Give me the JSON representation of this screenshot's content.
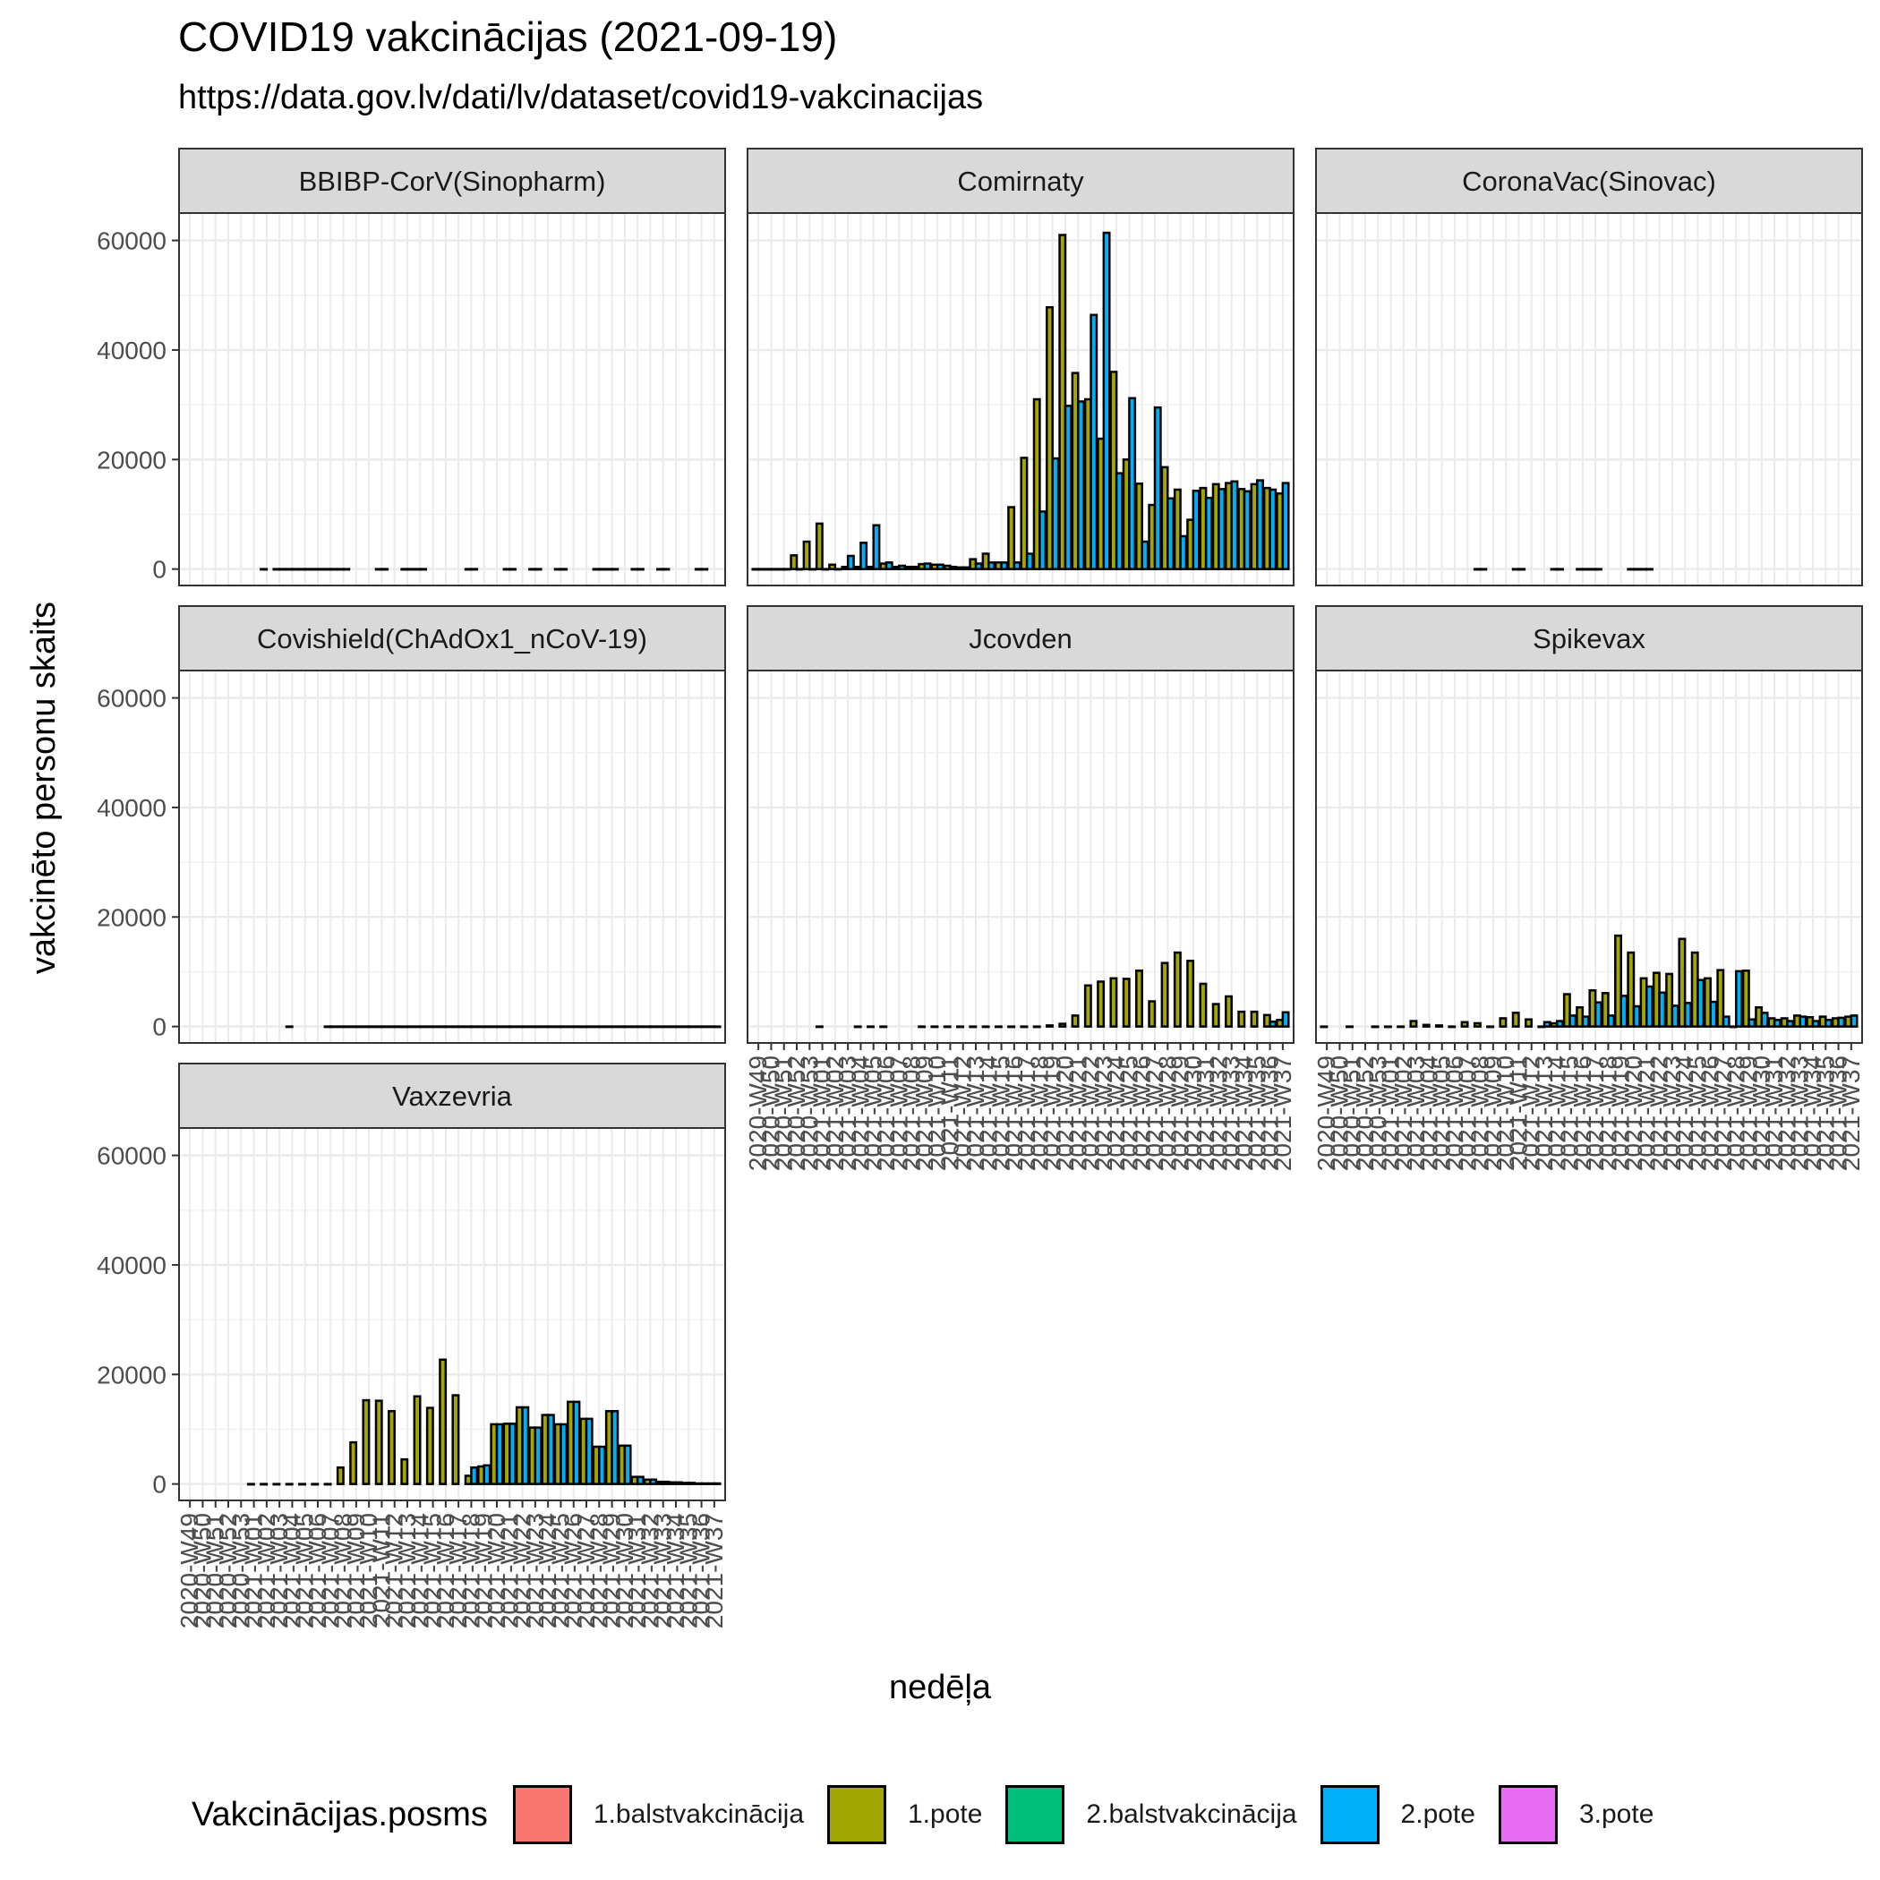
{
  "chart_data": {
    "type": "bar",
    "title": "COVID19 vakcinācijas (2021-09-19)",
    "subtitle": "https://data.gov.lv/dati/lv/dataset/covid19-vakcinacijas",
    "xlabel": "nedēļa",
    "ylabel": "vakcinēto personu skaits",
    "ylim": [
      -3000,
      65000
    ],
    "yticks": [
      0,
      20000,
      40000,
      60000
    ],
    "grid": true,
    "legend": {
      "title": "Vakcinācijas.posms",
      "position": "bottom",
      "entries": [
        {
          "name": "1.balstvakcinācija",
          "color": "#F8766D"
        },
        {
          "name": "1.pote",
          "color": "#A3A500"
        },
        {
          "name": "2.balstvakcinācija",
          "color": "#00BF7D"
        },
        {
          "name": "2.pote",
          "color": "#00B0F6"
        },
        {
          "name": "3.pote",
          "color": "#E76BF3"
        }
      ]
    },
    "weeks": [
      "2020-W49",
      "2020-W50",
      "2020-W51",
      "2020-W52",
      "2020-W53",
      "2021-W01",
      "2021-W02",
      "2021-W03",
      "2021-W04",
      "2021-W05",
      "2021-W06",
      "2021-W07",
      "2021-W08",
      "2021-W09",
      "2021-W10",
      "2021-W11",
      "2021-W12",
      "2021-W13",
      "2021-W14",
      "2021-W15",
      "2021-W16",
      "2021-W17",
      "2021-W18",
      "2021-W19",
      "2021-W20",
      "2021-W21",
      "2021-W22",
      "2021-W23",
      "2021-W24",
      "2021-W25",
      "2021-W26",
      "2021-W27",
      "2021-W28",
      "2021-W29",
      "2021-W30",
      "2021-W31",
      "2021-W32",
      "2021-W33",
      "2021-W34",
      "2021-W35",
      "2021-W36",
      "2021-W37"
    ],
    "facets": [
      {
        "name": "BBIBP-CorV(Sinopharm)",
        "series": [
          {
            "name": "1.pote",
            "values": [
              null,
              null,
              null,
              null,
              null,
              null,
              0,
              0,
              0,
              0,
              0,
              0,
              0,
              null,
              null,
              0,
              null,
              0,
              0,
              null,
              null,
              null,
              0,
              null,
              null,
              0,
              null,
              0,
              null,
              0,
              null,
              null,
              0,
              0,
              null,
              0,
              null,
              0,
              null,
              null,
              0,
              null
            ]
          },
          {
            "name": "2.pote",
            "values": [
              null,
              null,
              null,
              null,
              null,
              null,
              null,
              0,
              0,
              0,
              0,
              0,
              0,
              null,
              null,
              0,
              null,
              0,
              0,
              null,
              null,
              null,
              0,
              null,
              null,
              0,
              null,
              0,
              null,
              0,
              null,
              null,
              0,
              0,
              null,
              0,
              null,
              0,
              null,
              null,
              0,
              null
            ]
          }
        ]
      },
      {
        "name": "Comirnaty",
        "series": [
          {
            "name": "1.pote",
            "values": [
              0,
              0,
              0,
              2500,
              5000,
              8300,
              800,
              400,
              400,
              400,
              1000,
              400,
              400,
              900,
              800,
              600,
              300,
              1800,
              2800,
              1200,
              11300,
              20300,
              31000,
              47800,
              61000,
              35800,
              31000,
              23800,
              36000,
              20000,
              15600,
              11700,
              18600,
              14500,
              9000,
              14800,
              15500,
              15700,
              14600,
              15500,
              14800,
              13800
            ]
          },
          {
            "name": "2.pote",
            "values": [
              0,
              0,
              0,
              0,
              0,
              0,
              0,
              2400,
              4800,
              8000,
              1200,
              600,
              400,
              1000,
              800,
              400,
              300,
              1000,
              1200,
              1200,
              1200,
              2800,
              10500,
              20200,
              29800,
              30600,
              46400,
              61400,
              17500,
              31200,
              5000,
              29500,
              12900,
              6000,
              14300,
              13000,
              14600,
              16000,
              14200,
              16200,
              14500,
              15700
            ]
          }
        ]
      },
      {
        "name": "CoronaVac(Sinovac)",
        "series": [
          {
            "name": "1.pote",
            "values": [
              null,
              null,
              null,
              null,
              null,
              null,
              null,
              null,
              null,
              null,
              null,
              null,
              0,
              null,
              null,
              0,
              null,
              null,
              0,
              null,
              0,
              0,
              null,
              null,
              0,
              0,
              null,
              null,
              null,
              null,
              null,
              null,
              null,
              null,
              null,
              null,
              null,
              null,
              null,
              null,
              null,
              null
            ]
          },
          {
            "name": "2.pote",
            "values": [
              null,
              null,
              null,
              null,
              null,
              null,
              null,
              null,
              null,
              null,
              null,
              null,
              0,
              null,
              null,
              0,
              null,
              null,
              0,
              null,
              0,
              0,
              null,
              null,
              0,
              0,
              null,
              null,
              null,
              null,
              null,
              null,
              null,
              null,
              null,
              null,
              null,
              null,
              null,
              null,
              null,
              null
            ]
          }
        ]
      },
      {
        "name": "Covishield(ChAdOx1_nCoV-19)",
        "series": [
          {
            "name": "1.pote",
            "values": [
              null,
              null,
              null,
              null,
              null,
              null,
              null,
              null,
              0,
              null,
              null,
              0,
              0,
              0,
              0,
              0,
              0,
              0,
              0,
              0,
              0,
              0,
              0,
              0,
              0,
              0,
              0,
              0,
              0,
              0,
              0,
              0,
              0,
              0,
              0,
              0,
              0,
              0,
              0,
              0,
              0,
              0
            ]
          },
          {
            "name": "2.pote",
            "values": [
              null,
              null,
              null,
              null,
              null,
              null,
              null,
              null,
              null,
              null,
              null,
              0,
              0,
              0,
              0,
              0,
              0,
              0,
              0,
              0,
              0,
              0,
              0,
              0,
              0,
              0,
              0,
              0,
              0,
              0,
              0,
              0,
              0,
              0,
              0,
              0,
              0,
              0,
              0,
              0,
              0,
              0
            ]
          }
        ]
      },
      {
        "name": "Jcovden",
        "series": [
          {
            "name": "1.pote",
            "values": [
              null,
              null,
              null,
              null,
              null,
              0,
              null,
              null,
              0,
              0,
              0,
              null,
              null,
              0,
              0,
              0,
              0,
              0,
              0,
              0,
              0,
              0,
              0,
              200,
              500,
              2000,
              7500,
              8200,
              8800,
              8700,
              10200,
              4600,
              11600,
              13500,
              12000,
              7800,
              4100,
              5500,
              2700,
              2700,
              2100,
              1200
            ]
          },
          {
            "name": "2.pote",
            "values": [
              null,
              null,
              null,
              null,
              null,
              null,
              null,
              null,
              null,
              null,
              null,
              null,
              null,
              null,
              null,
              null,
              null,
              null,
              null,
              null,
              null,
              null,
              null,
              null,
              null,
              null,
              null,
              null,
              null,
              null,
              null,
              null,
              null,
              null,
              null,
              null,
              null,
              null,
              null,
              null,
              900,
              2600
            ]
          }
        ]
      },
      {
        "name": "Spikevax",
        "series": [
          {
            "name": "1.pote",
            "values": [
              0,
              null,
              0,
              null,
              0,
              0,
              0,
              1000,
              300,
              200,
              0,
              800,
              600,
              0,
              1500,
              2500,
              1300,
              0,
              600,
              5900,
              3500,
              6600,
              6100,
              16600,
              13500,
              8800,
              9800,
              9600,
              16000,
              13500,
              8800,
              10300,
              0,
              10200,
              3500,
              1500,
              1500,
              2000,
              1700,
              1800,
              1500,
              1800
            ]
          },
          {
            "name": "2.pote",
            "values": [
              null,
              null,
              null,
              null,
              null,
              null,
              null,
              null,
              null,
              null,
              null,
              null,
              null,
              null,
              null,
              null,
              null,
              800,
              1000,
              2000,
              1800,
              4400,
              2000,
              5600,
              3700,
              7300,
              6200,
              3800,
              4300,
              8500,
              4500,
              1800,
              10100,
              1300,
              2500,
              1200,
              1000,
              1800,
              1000,
              1200,
              1600,
              2000
            ]
          }
        ]
      },
      {
        "name": "Vaxzevria",
        "series": [
          {
            "name": "1.pote",
            "values": [
              null,
              null,
              null,
              null,
              null,
              0,
              0,
              0,
              0,
              0,
              0,
              0,
              3000,
              7600,
              15300,
              15200,
              13300,
              4500,
              16000,
              13900,
              22700,
              16200,
              1500,
              3200,
              10900,
              11000,
              14000,
              10300,
              12600,
              10900,
              15000,
              11900,
              6800,
              13300,
              7000,
              1300,
              800,
              400,
              300,
              200,
              100,
              100
            ]
          },
          {
            "name": "2.pote",
            "values": [
              null,
              null,
              null,
              null,
              null,
              null,
              null,
              null,
              null,
              null,
              null,
              null,
              null,
              null,
              null,
              null,
              null,
              null,
              null,
              null,
              null,
              null,
              3000,
              3400,
              10900,
              11000,
              14000,
              10300,
              12600,
              10900,
              15000,
              11900,
              6800,
              13300,
              7000,
              1300,
              800,
              400,
              300,
              200,
              100,
              100
            ]
          }
        ]
      }
    ]
  },
  "colors": {
    "1.pote": "#A3A500",
    "2.pote": "#00B0F6"
  }
}
